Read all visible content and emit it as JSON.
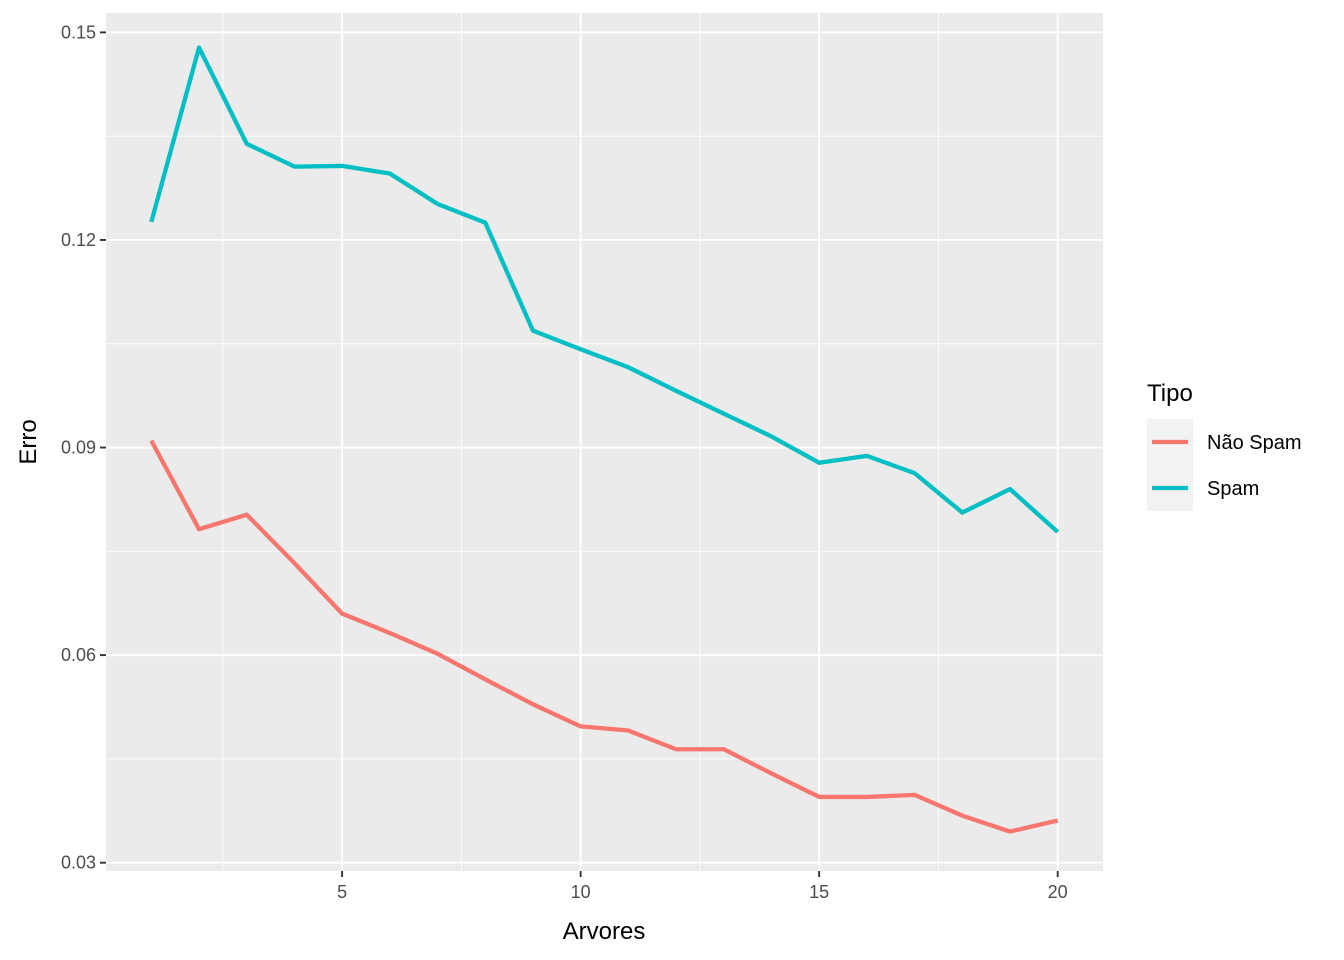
{
  "chart_data": {
    "type": "line",
    "title": "",
    "xlabel": "Arvores",
    "ylabel": "Erro",
    "xlim": [
      0.05,
      20.95
    ],
    "ylim": [
      0.0288,
      0.1528
    ],
    "x_ticks": [
      5,
      10,
      15,
      20
    ],
    "x_minor_ticks": [
      2.5,
      7.5,
      12.5,
      17.5
    ],
    "x_tick_labels": [
      "5",
      "10",
      "15",
      "20"
    ],
    "y_ticks": [
      0.03,
      0.06,
      0.09,
      0.12,
      0.15
    ],
    "y_minor_ticks": [
      0.045,
      0.075,
      0.105,
      0.135
    ],
    "y_tick_labels": [
      "0.03",
      "0.06",
      "0.09",
      "0.12",
      "0.15"
    ],
    "grid": true,
    "panel_background": "#EBEBEB",
    "legend": {
      "title": "Tipo",
      "position": "right"
    },
    "x": [
      1,
      2,
      3,
      4,
      5,
      6,
      7,
      8,
      9,
      10,
      11,
      12,
      13,
      14,
      15,
      16,
      17,
      18,
      19,
      20
    ],
    "series": [
      {
        "name": "Não Spam",
        "color": "#F8766D",
        "values": [
          0.091,
          0.0782,
          0.0803,
          0.0733,
          0.066,
          0.0632,
          0.0602,
          0.0565,
          0.0529,
          0.0497,
          0.0491,
          0.0464,
          0.0464,
          0.0429,
          0.0395,
          0.0395,
          0.0398,
          0.0368,
          0.0345,
          0.0361
        ]
      },
      {
        "name": "Spam",
        "color": "#00BFC4",
        "values": [
          0.1226,
          0.1478,
          0.1339,
          0.1306,
          0.1307,
          0.1296,
          0.1252,
          0.1225,
          0.1069,
          0.1042,
          0.1016,
          0.0982,
          0.0949,
          0.0916,
          0.0878,
          0.0888,
          0.0863,
          0.0806,
          0.084,
          0.0778
        ]
      }
    ]
  }
}
